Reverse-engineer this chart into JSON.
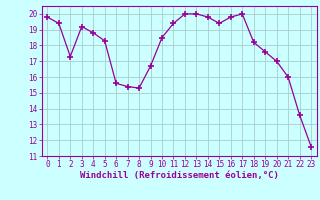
{
  "x": [
    0,
    1,
    2,
    3,
    4,
    5,
    6,
    7,
    8,
    9,
    10,
    11,
    12,
    13,
    14,
    15,
    16,
    17,
    18,
    19,
    20,
    21,
    22,
    23
  ],
  "y": [
    19.8,
    19.4,
    17.3,
    19.2,
    18.8,
    18.3,
    15.6,
    15.4,
    15.3,
    16.7,
    18.5,
    19.4,
    20.0,
    20.0,
    19.8,
    19.4,
    19.8,
    20.0,
    18.2,
    17.6,
    17.0,
    16.0,
    13.6,
    11.6
  ],
  "line_color": "#990099",
  "marker": "+",
  "marker_size": 4,
  "marker_lw": 1.2,
  "bg_color": "#ccffff",
  "grid_color": "#aacccc",
  "xlabel": "Windchill (Refroidissement éolien,°C)",
  "xlabel_fontsize": 6.5,
  "xlim": [
    -0.5,
    23.5
  ],
  "ylim": [
    11,
    20.5
  ],
  "yticks": [
    11,
    12,
    13,
    14,
    15,
    16,
    17,
    18,
    19,
    20
  ],
  "xticks": [
    0,
    1,
    2,
    3,
    4,
    5,
    6,
    7,
    8,
    9,
    10,
    11,
    12,
    13,
    14,
    15,
    16,
    17,
    18,
    19,
    20,
    21,
    22,
    23
  ],
  "tick_fontsize": 5.5,
  "tick_color": "#990099",
  "spine_color": "#990099",
  "linewidth": 0.9
}
